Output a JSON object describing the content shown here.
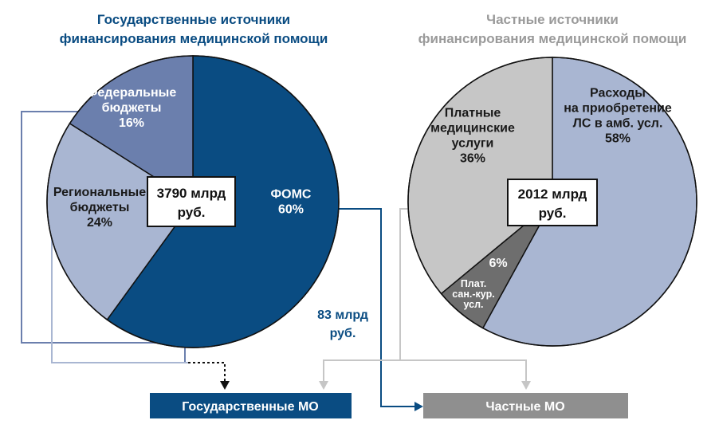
{
  "chart_data": [
    {
      "type": "pie",
      "title_lines": [
        "Государственные источники",
        "финансирования медицинской помощи"
      ],
      "center_label_lines": [
        "3790 млрд",
        "руб."
      ],
      "slices": [
        {
          "label_lines": [
            "ФОМС",
            "60%"
          ],
          "value": 60,
          "color": "#0a4c82",
          "text_color": "#ffffff"
        },
        {
          "label_lines": [
            "Региональные",
            "бюджеты",
            "24%"
          ],
          "value": 24,
          "color": "#a9b6d2",
          "text_color": "#1a1a1a"
        },
        {
          "label_lines": [
            "Федеральные",
            "бюджеты",
            "16%"
          ],
          "value": 16,
          "color": "#6b7fad",
          "text_color": "#ffffff"
        }
      ]
    },
    {
      "type": "pie",
      "title_lines": [
        "Частные источники",
        "финансирования медицинской помощи"
      ],
      "center_label_lines": [
        "2012 млрд",
        "руб."
      ],
      "slices": [
        {
          "label_lines": [
            "Расходы",
            "на приобретение",
            "ЛС в амб. усл.",
            "58%"
          ],
          "value": 58,
          "color": "#a9b6d2",
          "text_color": "#1a1a1a"
        },
        {
          "label_lines": [
            "6%",
            "Плат.",
            "сан.-кур.",
            "усл."
          ],
          "value": 6,
          "color": "#6e6e6e",
          "text_color": "#ffffff"
        },
        {
          "label_lines": [
            "Платные",
            "медицинские",
            "услуги",
            "36%"
          ],
          "value": 36,
          "color": "#c6c6c6",
          "text_color": "#1a1a1a"
        }
      ]
    }
  ],
  "flow_label_lines": [
    "83 млрд",
    "руб."
  ],
  "targets": {
    "state_mo": "Государственные МО",
    "private_mo": "Частные МО"
  },
  "colors": {
    "state_title": "#0a4c82",
    "private_title": "#9a9a9a",
    "state_mo_box": "#0a4c82",
    "private_mo_box": "#8f8f8f",
    "fomc_flow_line": "#0a4c82",
    "federal_line": "#6b7fad",
    "regional_line": "#a9b6d2",
    "private_line": "#c6c6c6"
  }
}
